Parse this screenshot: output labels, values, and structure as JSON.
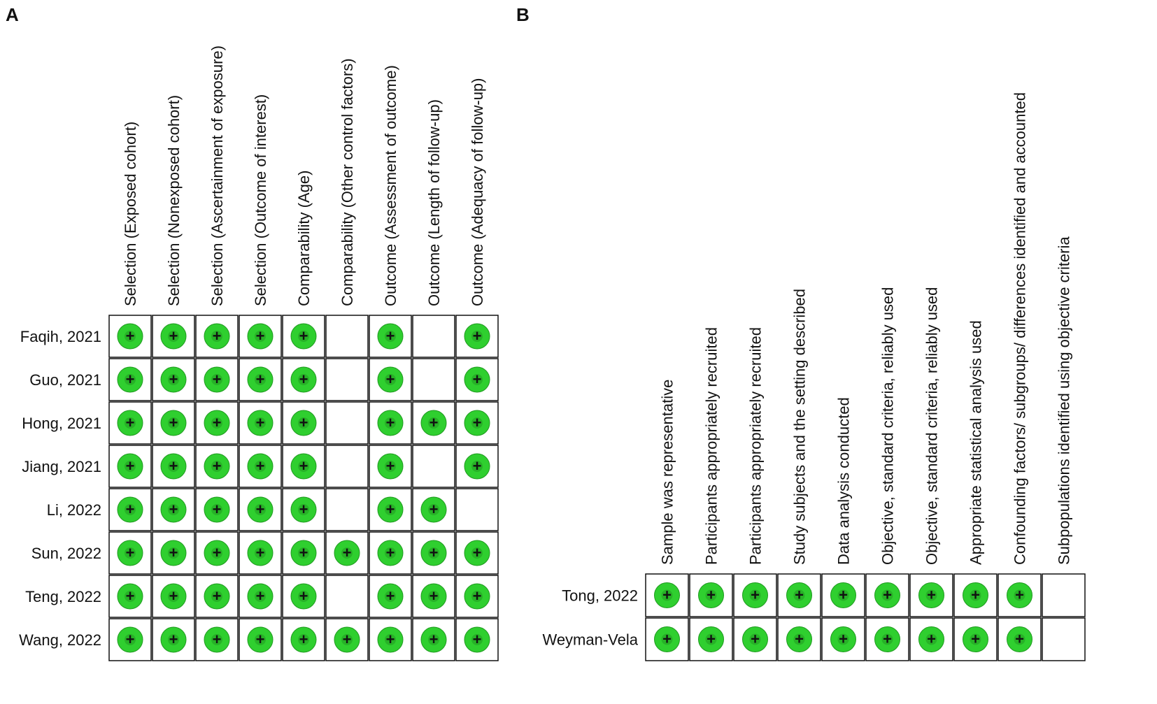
{
  "panels": [
    {
      "label": "A",
      "columns": [
        "Selection (Exposed cohort)",
        "Selection (Nonexposed cohort)",
        "Selection (Ascertainment of exposure)",
        "Selection (Outcome of interest)",
        "Comparability (Age)",
        "Comparability (Other control factors)",
        "Outcome (Assessment of outcome)",
        "Outcome (Length of follow-up)",
        "Outcome (Adequacy of follow-up)"
      ],
      "rows": [
        {
          "study": "Faqih, 2021",
          "cells": [
            "+",
            "+",
            "+",
            "+",
            "+",
            null,
            "+",
            null,
            "+"
          ]
        },
        {
          "study": "Guo, 2021",
          "cells": [
            "+",
            "+",
            "+",
            "+",
            "+",
            null,
            "+",
            null,
            "+"
          ]
        },
        {
          "study": "Hong, 2021",
          "cells": [
            "+",
            "+",
            "+",
            "+",
            "+",
            null,
            "+",
            "+",
            "+"
          ]
        },
        {
          "study": "Jiang, 2021",
          "cells": [
            "+",
            "+",
            "+",
            "+",
            "+",
            null,
            "+",
            null,
            "+"
          ]
        },
        {
          "study": "Li, 2022",
          "cells": [
            "+",
            "+",
            "+",
            "+",
            "+",
            null,
            "+",
            "+",
            null
          ]
        },
        {
          "study": "Sun, 2022",
          "cells": [
            "+",
            "+",
            "+",
            "+",
            "+",
            "+",
            "+",
            "+",
            "+"
          ]
        },
        {
          "study": "Teng, 2022",
          "cells": [
            "+",
            "+",
            "+",
            "+",
            "+",
            null,
            "+",
            "+",
            "+"
          ]
        },
        {
          "study": "Wang, 2022",
          "cells": [
            "+",
            "+",
            "+",
            "+",
            "+",
            "+",
            "+",
            "+",
            "+"
          ]
        }
      ]
    },
    {
      "label": "B",
      "columns": [
        "Sample was representative",
        "Participants appropriately recruited",
        "Participants appropriately recruited",
        "Study subjects and the setting described",
        "Data analysis conducted",
        "Objective, standard criteria, reliably used",
        "Objective, standard criteria, reliably used",
        "Appropriate statistical analysis used",
        "Confounding factors/ subgroups/ differences identified and accounted",
        "Subpopulations identified using objective criteria"
      ],
      "rows": [
        {
          "study": "Tong, 2022",
          "cells": [
            "+",
            "+",
            "+",
            "+",
            "+",
            "+",
            "+",
            "+",
            "+",
            null
          ]
        },
        {
          "study": "Weyman-Vela",
          "cells": [
            "+",
            "+",
            "+",
            "+",
            "+",
            "+",
            "+",
            "+",
            "+",
            null
          ]
        }
      ]
    }
  ]
}
